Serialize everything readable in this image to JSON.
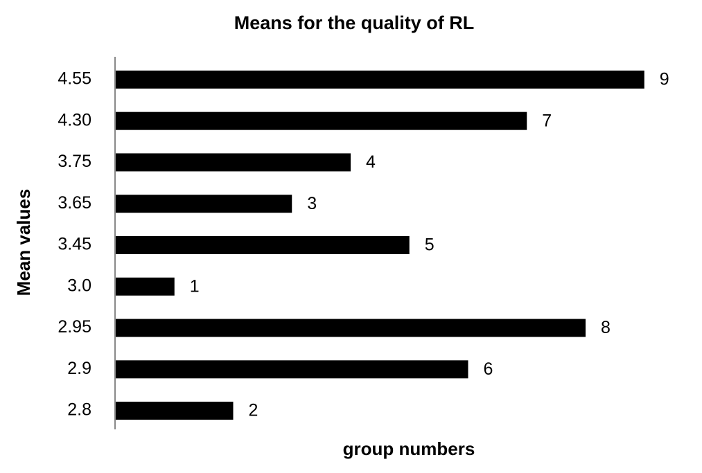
{
  "chart_data": {
    "type": "bar",
    "orientation": "horizontal",
    "title": "Means for the quality of RL",
    "x_label": "group numbers",
    "y_label": "Mean values",
    "categories": [
      "4.55",
      "4.30",
      "3.75",
      "3.65",
      "3.45",
      "3.0",
      "2.95",
      "2.9",
      "2.8"
    ],
    "values": [
      9,
      7,
      4,
      3,
      5,
      1,
      8,
      6,
      2
    ],
    "color": "#000000"
  }
}
